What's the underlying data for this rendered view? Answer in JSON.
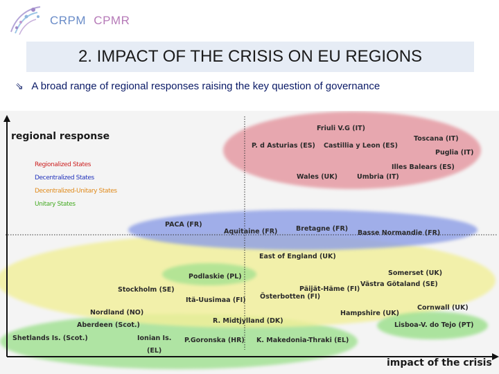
{
  "header": {
    "logo_text_1": "CRPM",
    "logo_text_2": "CPMR"
  },
  "title": "2. IMPACT OF THE CRISIS ON EU REGIONS",
  "subtitle": "A broad range of regional responses raising the key question of governance",
  "subtitle_bullet_icon": "arrow-bullet-icon",
  "diagram": {
    "y_axis_title": "regional response",
    "x_axis_title": "impact of the crisis",
    "legend": [
      {
        "label": "Regionalized States",
        "color": "#cc2222"
      },
      {
        "label": "Decentralized States",
        "color": "#2233bb"
      },
      {
        "label": "Decentralized-Unitary States",
        "color": "#e08a1a"
      },
      {
        "label": "Unitary States",
        "color": "#44aa22"
      }
    ],
    "group_colors": {
      "regionalized": "#e59aa2",
      "decentralized": "#8d9fe6",
      "decentralized_unitary": "#f2ef9a",
      "unitary": "#9fe08f"
    },
    "regions": [
      "Friuli V.G (IT)",
      "Toscana (IT)",
      "P. d Asturias (ES)",
      "Castillia y Leon (ES)",
      "Puglia (IT)",
      "Illes Balears (ES)",
      "Wales (UK)",
      "Umbria (IT)",
      "PACA (FR)",
      "Aquitaine (FR)",
      "Bretagne (FR)",
      "Basse Normandie (FR)",
      "East of England (UK)",
      "Somerset (UK)",
      "Podlaskie (PL)",
      "Västra Götaland (SE)",
      "Stockholm (SE)",
      "Päijät-Häme (FI)",
      "Österbotten (FI)",
      "Itä-Uusimaa (FI)",
      "Nordland (NO)",
      "Hampshire (UK)",
      "Cornwall (UK)",
      "R. Midtjylland (DK)",
      "Aberdeen (Scot.)",
      "Lisboa-V. do Tejo (PT)",
      "Shetlands Is. (Scot.)",
      "Ionian Is.",
      "(EL)",
      "P.Goronska (HR)",
      "K. Makedonia-Thraki (EL)"
    ]
  }
}
